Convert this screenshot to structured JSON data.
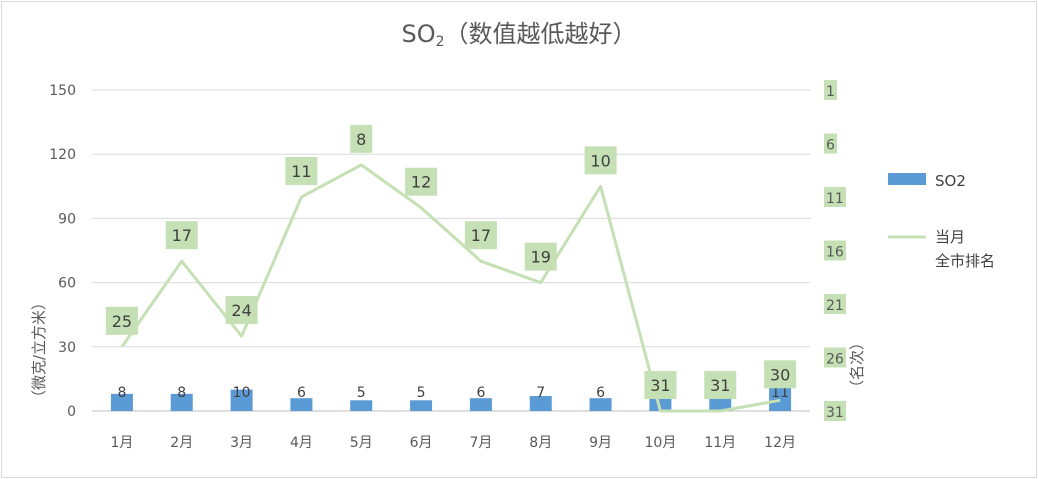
{
  "chart_data": {
    "type": "bar",
    "title_main": "SO",
    "title_sub": "2",
    "title_rest": "（数值越低越好）",
    "categories": [
      "1月",
      "2月",
      "3月",
      "4月",
      "5月",
      "6月",
      "7月",
      "8月",
      "9月",
      "10月",
      "11月",
      "12月"
    ],
    "series": [
      {
        "name": "SO2",
        "type": "bar",
        "axis": "left",
        "color": "#5b9bd5",
        "values": [
          8,
          8,
          10,
          6,
          5,
          5,
          6,
          7,
          6,
          10,
          12,
          11
        ]
      },
      {
        "name": "当月\n全市排名",
        "type": "line",
        "axis": "right",
        "color": "#c5e0b4",
        "values": [
          25,
          17,
          24,
          11,
          8,
          12,
          17,
          19,
          10,
          31,
          31,
          30
        ]
      }
    ],
    "ylabel": "（微克/立方米）",
    "y2label": "（名次）",
    "ylim": [
      0,
      150
    ],
    "yticks": [
      0,
      30,
      60,
      90,
      120,
      150
    ],
    "y2lim": [
      31,
      1
    ],
    "y2ticks": [
      1,
      6,
      11,
      16,
      21,
      26,
      31
    ],
    "legend_position": "right",
    "grid": true
  }
}
